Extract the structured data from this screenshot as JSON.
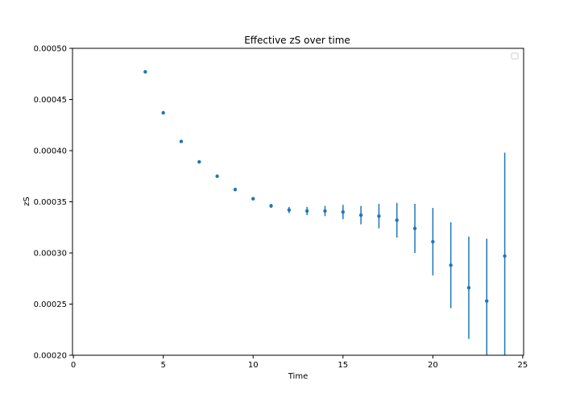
{
  "chart_data": {
    "type": "scatter",
    "title": "Effective zS over time",
    "xlabel": "Time",
    "ylabel": "zS",
    "xlim": [
      -0.05,
      25.05
    ],
    "ylim": [
      0.0002,
      0.0005
    ],
    "xticks": [
      0,
      5,
      10,
      15,
      20,
      25
    ],
    "yticks": [
      0.0002,
      0.00025,
      0.0003,
      0.00035,
      0.0004,
      0.00045,
      0.0005
    ],
    "xtick_labels": [
      "0",
      "5",
      "10",
      "15",
      "20",
      "25"
    ],
    "ytick_labels": [
      "0.00020",
      "0.00025",
      "0.00030",
      "0.00035",
      "0.00040",
      "0.00045",
      "0.00050"
    ],
    "grid": false,
    "legend": "top-right, empty",
    "series_color": "#1f77b4",
    "series": [
      {
        "x": [
          4,
          5,
          6,
          7,
          8,
          9,
          10,
          11,
          12,
          13,
          14,
          15,
          16,
          17,
          18,
          19,
          20,
          21,
          22,
          23,
          24
        ],
        "y": [
          0.000477,
          0.000437,
          0.000409,
          0.000389,
          0.000375,
          0.000362,
          0.000353,
          0.000346,
          0.000342,
          0.000341,
          0.000341,
          0.00034,
          0.000337,
          0.000336,
          0.000332,
          0.000324,
          0.000311,
          0.000288,
          0.000266,
          0.000253,
          0.000297
        ],
        "yerr": [
          5e-07,
          5e-07,
          5e-07,
          1e-06,
          1e-06,
          1e-06,
          1.5e-06,
          2e-06,
          3e-06,
          4e-06,
          5e-06,
          7e-06,
          9e-06,
          1.2e-05,
          1.7e-05,
          2.4e-05,
          3.3e-05,
          4.2e-05,
          5e-05,
          6.1e-05,
          0.000101
        ]
      }
    ]
  }
}
